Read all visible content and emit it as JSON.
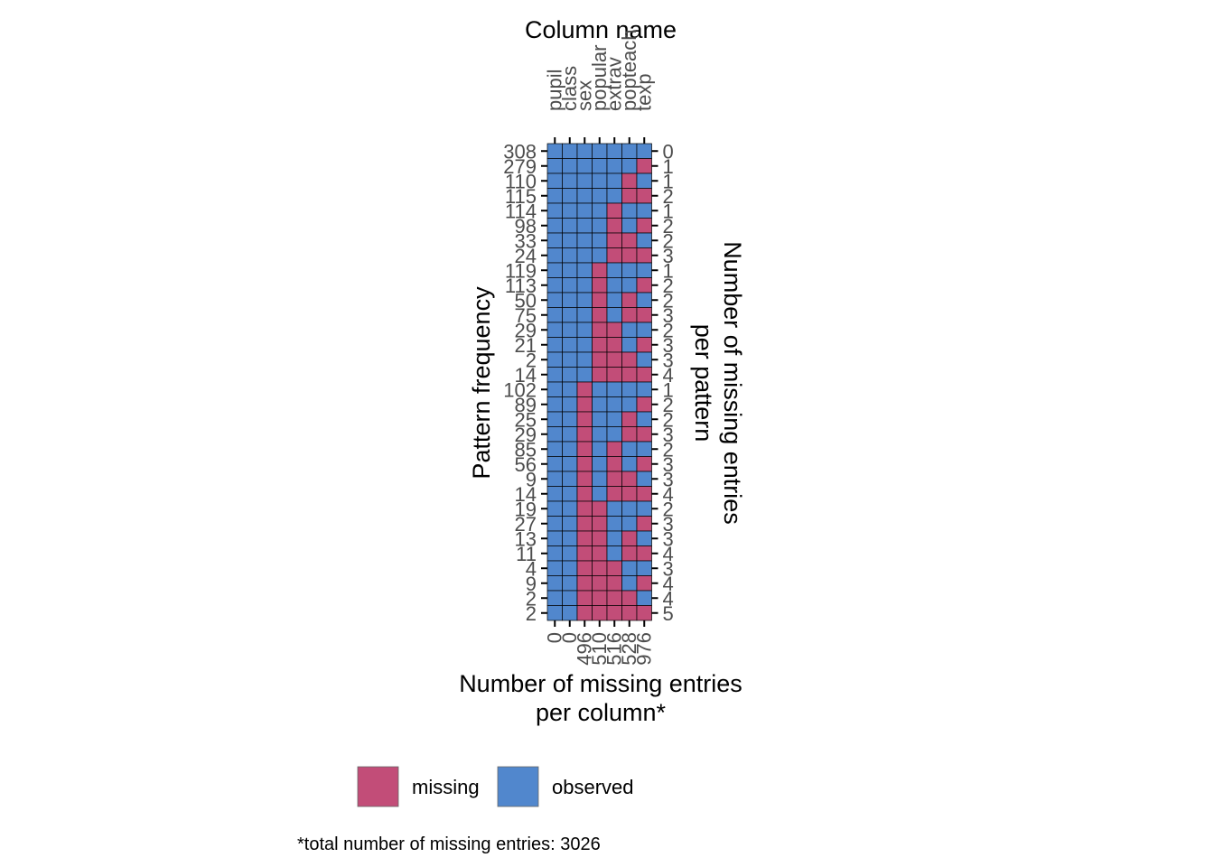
{
  "chart_data": {
    "type": "heatmap",
    "title": "",
    "x_axis_title": "Column name",
    "columns": [
      "pupil",
      "class",
      "sex",
      "popular",
      "extrav",
      "popteach",
      "texp"
    ],
    "left_axis_title": "Pattern frequency",
    "right_axis_title_lines": [
      "Number of missing entries",
      "per pattern"
    ],
    "bottom_axis_title_lines": [
      "Number of missing entries",
      "per column*"
    ],
    "pattern_frequency": [
      308,
      279,
      110,
      115,
      114,
      98,
      33,
      24,
      119,
      113,
      50,
      75,
      29,
      21,
      2,
      14,
      102,
      89,
      25,
      29,
      85,
      56,
      9,
      14,
      19,
      27,
      13,
      11,
      4,
      9,
      2,
      2
    ],
    "missing_per_pattern": [
      0,
      1,
      1,
      2,
      1,
      2,
      2,
      3,
      1,
      2,
      2,
      3,
      2,
      3,
      3,
      4,
      1,
      2,
      2,
      3,
      2,
      3,
      3,
      4,
      2,
      3,
      3,
      4,
      3,
      4,
      4,
      5
    ],
    "missing_per_column": [
      0,
      0,
      496,
      510,
      516,
      528,
      976
    ],
    "patterns": [
      [
        0,
        0,
        0,
        0,
        0,
        0,
        0
      ],
      [
        0,
        0,
        0,
        0,
        0,
        0,
        1
      ],
      [
        0,
        0,
        0,
        0,
        0,
        1,
        0
      ],
      [
        0,
        0,
        0,
        0,
        0,
        1,
        1
      ],
      [
        0,
        0,
        0,
        0,
        1,
        0,
        0
      ],
      [
        0,
        0,
        0,
        0,
        1,
        0,
        1
      ],
      [
        0,
        0,
        0,
        0,
        1,
        1,
        0
      ],
      [
        0,
        0,
        0,
        0,
        1,
        1,
        1
      ],
      [
        0,
        0,
        0,
        1,
        0,
        0,
        0
      ],
      [
        0,
        0,
        0,
        1,
        0,
        0,
        1
      ],
      [
        0,
        0,
        0,
        1,
        0,
        1,
        0
      ],
      [
        0,
        0,
        0,
        1,
        0,
        1,
        1
      ],
      [
        0,
        0,
        0,
        1,
        1,
        0,
        0
      ],
      [
        0,
        0,
        0,
        1,
        1,
        0,
        1
      ],
      [
        0,
        0,
        0,
        1,
        1,
        1,
        0
      ],
      [
        0,
        0,
        0,
        1,
        1,
        1,
        1
      ],
      [
        0,
        0,
        1,
        0,
        0,
        0,
        0
      ],
      [
        0,
        0,
        1,
        0,
        0,
        0,
        1
      ],
      [
        0,
        0,
        1,
        0,
        0,
        1,
        0
      ],
      [
        0,
        0,
        1,
        0,
        0,
        1,
        1
      ],
      [
        0,
        0,
        1,
        0,
        1,
        0,
        0
      ],
      [
        0,
        0,
        1,
        0,
        1,
        0,
        1
      ],
      [
        0,
        0,
        1,
        0,
        1,
        1,
        0
      ],
      [
        0,
        0,
        1,
        0,
        1,
        1,
        1
      ],
      [
        0,
        0,
        1,
        1,
        0,
        0,
        0
      ],
      [
        0,
        0,
        1,
        1,
        0,
        0,
        1
      ],
      [
        0,
        0,
        1,
        1,
        0,
        1,
        0
      ],
      [
        0,
        0,
        1,
        1,
        0,
        1,
        1
      ],
      [
        0,
        0,
        1,
        1,
        1,
        0,
        0
      ],
      [
        0,
        0,
        1,
        1,
        1,
        0,
        1
      ],
      [
        0,
        0,
        1,
        1,
        1,
        1,
        0
      ],
      [
        0,
        0,
        1,
        1,
        1,
        1,
        1
      ]
    ],
    "legend": [
      {
        "label": "missing",
        "color": "#c24d78"
      },
      {
        "label": "observed",
        "color": "#5187cd"
      }
    ],
    "footnote": "*total number of missing entries: 3026",
    "legend_position": "bottom",
    "grid": false
  }
}
